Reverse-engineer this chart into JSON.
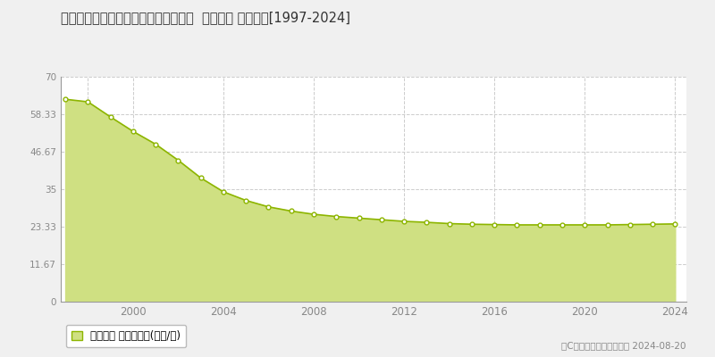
{
  "title": "長野県長野市稲田１丁目２８番５０外  地価公示 地価推移[1997-2024]",
  "years": [
    1997,
    1998,
    1999,
    2000,
    2001,
    2002,
    2003,
    2004,
    2005,
    2006,
    2007,
    2008,
    2009,
    2010,
    2011,
    2012,
    2013,
    2014,
    2015,
    2016,
    2017,
    2018,
    2019,
    2020,
    2021,
    2022,
    2023,
    2024
  ],
  "values": [
    63.0,
    62.2,
    57.5,
    53.0,
    49.0,
    44.0,
    38.5,
    34.2,
    31.5,
    29.5,
    28.2,
    27.2,
    26.5,
    26.0,
    25.5,
    25.0,
    24.7,
    24.3,
    24.1,
    24.0,
    23.9,
    23.9,
    23.9,
    23.9,
    23.9,
    24.0,
    24.1,
    24.2
  ],
  "line_color": "#8db500",
  "fill_color": "#cfe082",
  "marker_facecolor": "#ffffff",
  "marker_edgecolor": "#8db500",
  "ylim": [
    0,
    70
  ],
  "yticks": [
    0,
    11.67,
    23.33,
    35,
    46.67,
    58.33,
    70
  ],
  "ytick_labels": [
    "0",
    "11.67",
    "23.33",
    "35",
    "46.67",
    "58.33",
    "70"
  ],
  "xticks": [
    1998,
    2000,
    2004,
    2008,
    2012,
    2016,
    2020,
    2024
  ],
  "xtick_labels": [
    "",
    "2000",
    "2004",
    "2008",
    "2012",
    "2016",
    "2020",
    "2024"
  ],
  "legend_label": "地価公示 平均坪単価(万円/坪)",
  "copyright_text": "（C）土地価格ドットコム 2024-08-20",
  "bg_color": "#f0f0f0",
  "plot_bg_color": "#ffffff",
  "grid_color": "#cccccc",
  "tick_color": "#888888",
  "title_color": "#333333",
  "xlim_left": 1996.8,
  "xlim_right": 2024.5
}
